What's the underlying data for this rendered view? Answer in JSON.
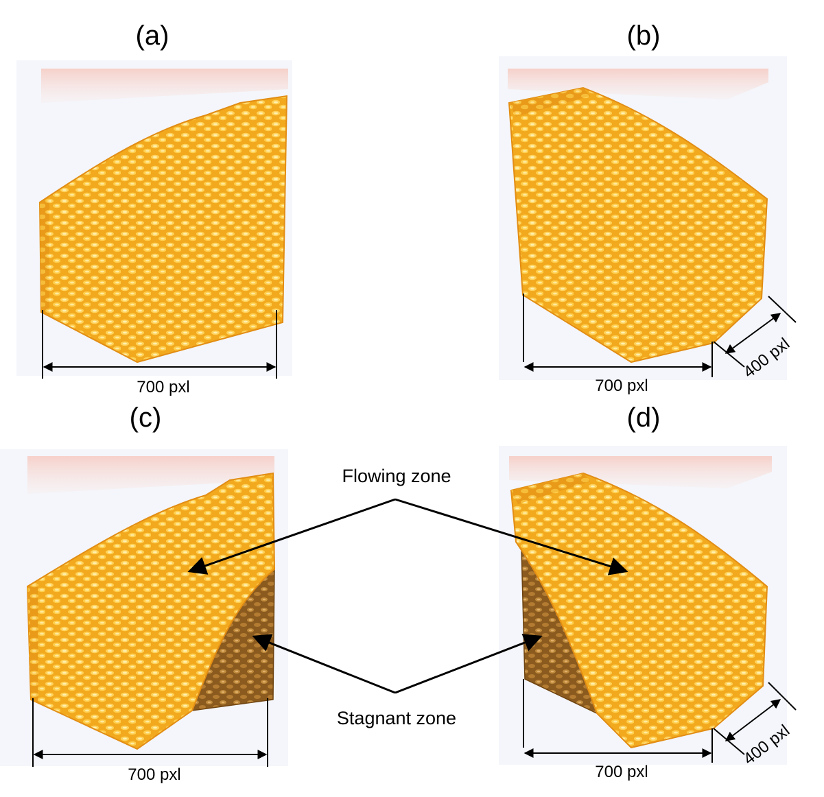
{
  "panels": {
    "a": {
      "label": "(a)",
      "width_label": "700 pxl"
    },
    "b": {
      "label": "(b)",
      "width_label": "700 pxl",
      "depth_label": "400 pxl"
    },
    "c": {
      "label": "(c)",
      "width_label": "700 pxl"
    },
    "d": {
      "label": "(d)",
      "width_label": "700 pxl",
      "depth_label": "400 pxl"
    }
  },
  "annotations": {
    "flowing_zone": "Flowing zone",
    "stagnant_zone": "Stagnant zone"
  },
  "colors": {
    "flowing_grain": "#f6b52a",
    "flowing_grain_light": "#ffe07a",
    "stagnant_grain": "#b07a2c",
    "stagnant_grain_dark": "#7a4f16",
    "container_wall": "#f4b2a8"
  }
}
